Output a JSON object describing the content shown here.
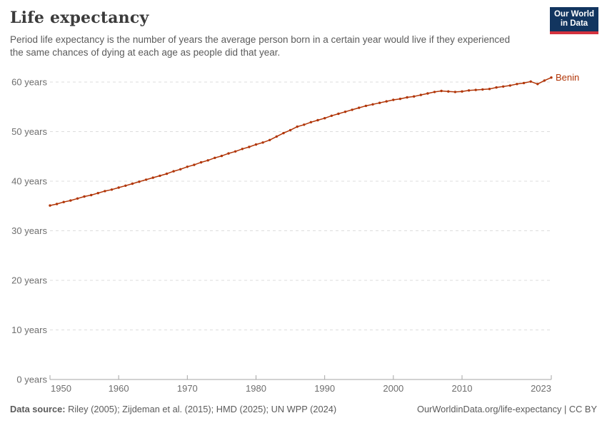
{
  "header": {
    "title": "Life expectancy",
    "subtitle": "Period life expectancy is the number of years the average person born in a certain year would live if they experienced the same chances of dying at each age as people did that year."
  },
  "logo": {
    "line1": "Our World",
    "line2": "in Data",
    "bg_color": "#12355f",
    "stripe_color": "#d4323e"
  },
  "chart_data": {
    "type": "line",
    "title": "Life expectancy",
    "unit_suffix": " years",
    "x": [
      1950,
      1951,
      1952,
      1953,
      1954,
      1955,
      1956,
      1957,
      1958,
      1959,
      1960,
      1961,
      1962,
      1963,
      1964,
      1965,
      1966,
      1967,
      1968,
      1969,
      1970,
      1971,
      1972,
      1973,
      1974,
      1975,
      1976,
      1977,
      1978,
      1979,
      1980,
      1981,
      1982,
      1983,
      1984,
      1985,
      1986,
      1987,
      1988,
      1989,
      1990,
      1991,
      1992,
      1993,
      1994,
      1995,
      1996,
      1997,
      1998,
      1999,
      2000,
      2001,
      2002,
      2003,
      2004,
      2005,
      2006,
      2007,
      2008,
      2009,
      2010,
      2011,
      2012,
      2013,
      2014,
      2015,
      2016,
      2017,
      2018,
      2019,
      2020,
      2021,
      2022,
      2023
    ],
    "series": [
      {
        "name": "Benin",
        "color": "#b13507",
        "values": [
          35.1,
          35.4,
          35.8,
          36.1,
          36.5,
          36.9,
          37.2,
          37.6,
          38.0,
          38.3,
          38.7,
          39.1,
          39.5,
          39.9,
          40.3,
          40.7,
          41.1,
          41.5,
          42.0,
          42.4,
          42.9,
          43.3,
          43.8,
          44.2,
          44.7,
          45.1,
          45.6,
          46.0,
          46.5,
          46.9,
          47.4,
          47.8,
          48.3,
          49.0,
          49.7,
          50.3,
          51.0,
          51.4,
          51.9,
          52.3,
          52.7,
          53.2,
          53.6,
          54.0,
          54.4,
          54.8,
          55.2,
          55.5,
          55.8,
          56.1,
          56.4,
          56.6,
          56.9,
          57.1,
          57.4,
          57.7,
          58.0,
          58.2,
          58.1,
          58.0,
          58.1,
          58.3,
          58.4,
          58.5,
          58.6,
          58.9,
          59.1,
          59.3,
          59.6,
          59.8,
          60.1,
          59.6,
          60.3,
          60.9
        ]
      }
    ],
    "xlabel": "",
    "ylabel": "",
    "ylim": [
      0,
      60
    ],
    "xlim": [
      1950,
      2023
    ],
    "y_ticks": [
      {
        "value": 0,
        "label": "0 years"
      },
      {
        "value": 10,
        "label": "10 years"
      },
      {
        "value": 20,
        "label": "20 years"
      },
      {
        "value": 30,
        "label": "30 years"
      },
      {
        "value": 40,
        "label": "40 years"
      },
      {
        "value": 50,
        "label": "50 years"
      },
      {
        "value": 60,
        "label": "60 years"
      }
    ],
    "x_tick_labels": [
      "1950",
      "1960",
      "1970",
      "1980",
      "1990",
      "2000",
      "2010",
      "2023"
    ],
    "x_tick_values": [
      1950,
      1960,
      1970,
      1980,
      1990,
      2000,
      2010,
      2023
    ],
    "grid": "horizontal-dashed",
    "legend_position": "end-of-line",
    "colors": {
      "gridline": "#dddddd",
      "axis": "#a5a5a5",
      "tick_text": "#6e6e6e"
    }
  },
  "footer": {
    "source_label": "Data source:",
    "source_text": " Riley (2005); Zijdeman et al. (2015); HMD (2025); UN WPP (2024)",
    "credit": "OurWorldinData.org/life-expectancy | CC BY"
  }
}
